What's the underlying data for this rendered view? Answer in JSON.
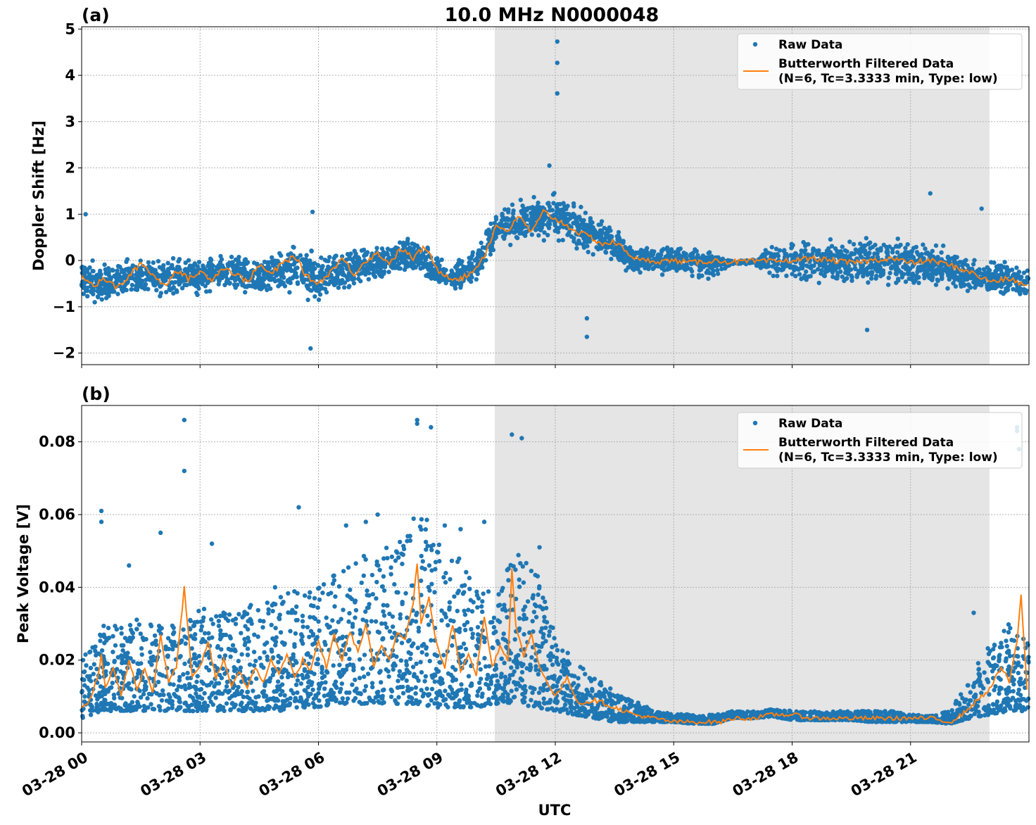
{
  "figure": {
    "title": "10.0 MHz N0000048",
    "xlabel": "UTC",
    "colors": {
      "raw": "#1f77b4",
      "filtered": "#ff7f0e",
      "shade": "#e5e5e5",
      "grid": "#b0b0b0"
    }
  },
  "chart_data": [
    {
      "type": "scatter",
      "panel_label": "(a)",
      "ylabel": "Doppler Shift [Hz]",
      "xlim": [
        "03-28 00:00",
        "03-29 00:00"
      ],
      "ylim": [
        -2.25,
        5.05
      ],
      "y_ticks": [
        {
          "v": -2,
          "label": "−2"
        },
        {
          "v": -1,
          "label": "−1"
        },
        {
          "v": 0,
          "label": "0"
        },
        {
          "v": 1,
          "label": "1"
        },
        {
          "v": 2,
          "label": "2"
        },
        {
          "v": 3,
          "label": "3"
        },
        {
          "v": 4,
          "label": "4"
        },
        {
          "v": 5,
          "label": "5"
        }
      ],
      "x_tick_hours": [
        0,
        3,
        6,
        9,
        12,
        15,
        18,
        21
      ],
      "x_tick_labels": [],
      "grid": true,
      "legend_position": "top-right",
      "shaded_interval": [
        "03-28 10:28",
        "03-28 23:00"
      ],
      "series": [
        {
          "name": "Raw Data",
          "style": "points",
          "x_hours": [
            0.0,
            0.5,
            1.0,
            1.5,
            2.0,
            2.5,
            3.0,
            3.5,
            4.0,
            4.5,
            5.0,
            5.5,
            5.8,
            6.0,
            6.5,
            7.0,
            7.5,
            8.0,
            8.5,
            9.0,
            9.5,
            10.0,
            10.5,
            11.0,
            11.5,
            12.0,
            12.5,
            13.0,
            13.5,
            14.0,
            14.5,
            15.0,
            15.5,
            16.0,
            16.5,
            17.0,
            17.5,
            18.0,
            18.5,
            19.0,
            19.5,
            20.0,
            20.5,
            21.0,
            21.5,
            22.0,
            22.5,
            23.0,
            23.5,
            23.95
          ],
          "center": [
            -0.4,
            -0.5,
            -0.45,
            -0.35,
            -0.4,
            -0.3,
            -0.35,
            -0.25,
            -0.3,
            -0.35,
            -0.25,
            -0.15,
            -0.3,
            -0.45,
            -0.3,
            -0.1,
            -0.05,
            0.05,
            0.1,
            -0.25,
            -0.35,
            -0.1,
            0.7,
            0.8,
            0.9,
            0.95,
            0.75,
            0.55,
            0.35,
            0.0,
            0.0,
            0.0,
            -0.05,
            -0.05,
            -0.05,
            -0.02,
            -0.02,
            0.0,
            0.0,
            0.0,
            -0.05,
            0.0,
            0.0,
            -0.05,
            -0.1,
            -0.2,
            -0.3,
            -0.4,
            -0.4,
            -0.5
          ],
          "spread": [
            0.55,
            0.5,
            0.5,
            0.55,
            0.5,
            0.5,
            0.5,
            0.5,
            0.5,
            0.55,
            0.6,
            0.65,
            0.75,
            0.65,
            0.55,
            0.5,
            0.45,
            0.45,
            0.45,
            0.45,
            0.45,
            0.45,
            0.5,
            0.55,
            0.6,
            0.6,
            0.55,
            0.5,
            0.45,
            0.35,
            0.35,
            0.35,
            0.4,
            0.4,
            0.05,
            0.05,
            0.4,
            0.6,
            0.6,
            0.6,
            0.6,
            0.65,
            0.6,
            0.6,
            0.55,
            0.55,
            0.5,
            0.45,
            0.45,
            0.45
          ],
          "outliers": [
            [
              12.05,
              4.73
            ],
            [
              12.05,
              4.27
            ],
            [
              12.05,
              3.61
            ],
            [
              11.85,
              2.05
            ],
            [
              12.8,
              -1.25
            ],
            [
              12.8,
              -1.65
            ],
            [
              5.8,
              -1.9
            ],
            [
              0.1,
              1.0
            ],
            [
              5.85,
              1.05
            ],
            [
              19.9,
              -1.5
            ],
            [
              21.5,
              1.45
            ],
            [
              22.8,
              1.12
            ]
          ]
        },
        {
          "name": "Butterworth Filtered Data\n(N=6, Tc=3.3333 min, Type: low)",
          "style": "line",
          "x_hours": [
            0.0,
            0.3,
            0.6,
            0.9,
            1.2,
            1.5,
            1.8,
            2.1,
            2.4,
            2.7,
            3.0,
            3.3,
            3.6,
            3.9,
            4.2,
            4.5,
            4.8,
            5.1,
            5.4,
            5.7,
            6.0,
            6.3,
            6.6,
            6.9,
            7.2,
            7.5,
            7.8,
            8.1,
            8.4,
            8.7,
            9.0,
            9.3,
            9.6,
            9.9,
            10.2,
            10.5,
            10.8,
            11.1,
            11.4,
            11.7,
            12.0,
            12.3,
            12.6,
            12.9,
            13.2,
            13.5,
            13.8,
            14.1,
            14.4,
            14.7,
            15.0,
            15.5,
            16.0,
            16.5,
            17.0,
            17.5,
            18.0,
            18.5,
            19.0,
            19.5,
            20.0,
            20.5,
            21.0,
            21.5,
            22.0,
            22.5,
            23.0,
            23.5,
            23.95
          ],
          "y": [
            -0.3,
            -0.55,
            -0.4,
            -0.6,
            -0.35,
            -0.05,
            -0.3,
            -0.55,
            -0.2,
            -0.4,
            -0.25,
            -0.4,
            -0.15,
            -0.3,
            -0.45,
            -0.1,
            -0.3,
            -0.05,
            0.1,
            -0.35,
            -0.5,
            -0.25,
            0.05,
            -0.3,
            0.0,
            0.15,
            -0.05,
            0.25,
            0.05,
            0.3,
            -0.2,
            -0.35,
            -0.4,
            -0.25,
            0.1,
            0.75,
            0.65,
            0.95,
            0.6,
            1.05,
            0.9,
            0.75,
            0.6,
            0.5,
            0.35,
            0.4,
            0.2,
            0.0,
            0.0,
            -0.02,
            0.0,
            -0.05,
            0.0,
            -0.03,
            -0.02,
            -0.02,
            0.0,
            0.05,
            0.0,
            -0.05,
            0.0,
            0.05,
            -0.05,
            0.0,
            -0.1,
            -0.25,
            -0.45,
            -0.4,
            -0.55
          ]
        }
      ]
    },
    {
      "type": "scatter",
      "panel_label": "(b)",
      "ylabel": "Peak Voltage [V]",
      "xlim": [
        "03-28 00:00",
        "03-29 00:00"
      ],
      "ylim": [
        -0.0025,
        0.09
      ],
      "y_ticks": [
        {
          "v": 0.0,
          "label": "0.00"
        },
        {
          "v": 0.02,
          "label": "0.02"
        },
        {
          "v": 0.04,
          "label": "0.04"
        },
        {
          "v": 0.06,
          "label": "0.06"
        },
        {
          "v": 0.08,
          "label": "0.08"
        }
      ],
      "x_tick_hours": [
        0,
        3,
        6,
        9,
        12,
        15,
        18,
        21
      ],
      "x_tick_labels": [
        "03-28 00",
        "03-28 03",
        "03-28 06",
        "03-28 09",
        "03-28 12",
        "03-28 15",
        "03-28 18",
        "03-28 21"
      ],
      "grid": true,
      "legend_position": "top-right",
      "shaded_interval": [
        "03-28 10:28",
        "03-28 23:00"
      ],
      "series": [
        {
          "name": "Raw Data",
          "style": "points",
          "x_hours": [
            0.0,
            0.5,
            1.0,
            1.5,
            2.0,
            2.5,
            3.0,
            3.5,
            4.0,
            4.5,
            5.0,
            5.5,
            6.0,
            6.5,
            7.0,
            7.5,
            8.0,
            8.5,
            9.0,
            9.5,
            10.0,
            10.5,
            11.0,
            11.5,
            12.0,
            12.5,
            13.0,
            13.5,
            14.0,
            14.5,
            15.0,
            15.5,
            16.0,
            16.5,
            17.0,
            17.5,
            18.0,
            18.5,
            19.0,
            19.5,
            20.0,
            20.5,
            21.0,
            21.5,
            22.0,
            22.5,
            23.0,
            23.5,
            23.95
          ],
          "low": [
            0.004,
            0.006,
            0.006,
            0.006,
            0.006,
            0.006,
            0.006,
            0.006,
            0.006,
            0.006,
            0.006,
            0.007,
            0.007,
            0.008,
            0.008,
            0.008,
            0.008,
            0.008,
            0.007,
            0.007,
            0.007,
            0.008,
            0.008,
            0.007,
            0.006,
            0.005,
            0.004,
            0.003,
            0.003,
            0.003,
            0.003,
            0.0025,
            0.0025,
            0.004,
            0.004,
            0.0045,
            0.0035,
            0.0035,
            0.0035,
            0.0035,
            0.003,
            0.003,
            0.003,
            0.003,
            0.0025,
            0.004,
            0.005,
            0.006,
            0.006
          ],
          "high": [
            0.02,
            0.03,
            0.03,
            0.032,
            0.03,
            0.03,
            0.035,
            0.034,
            0.034,
            0.036,
            0.038,
            0.04,
            0.04,
            0.045,
            0.048,
            0.05,
            0.052,
            0.062,
            0.055,
            0.05,
            0.04,
            0.04,
            0.05,
            0.045,
            0.027,
            0.02,
            0.015,
            0.012,
            0.009,
            0.006,
            0.0055,
            0.005,
            0.005,
            0.006,
            0.006,
            0.0065,
            0.006,
            0.006,
            0.006,
            0.006,
            0.006,
            0.006,
            0.005,
            0.005,
            0.006,
            0.015,
            0.025,
            0.03,
            0.025
          ],
          "outliers": [
            [
              2.6,
              0.086
            ],
            [
              2.6,
              0.072
            ],
            [
              0.5,
              0.061
            ],
            [
              0.5,
              0.058
            ],
            [
              2.0,
              0.055
            ],
            [
              3.3,
              0.052
            ],
            [
              7.5,
              0.06
            ],
            [
              8.5,
              0.086
            ],
            [
              8.5,
              0.085
            ],
            [
              8.85,
              0.084
            ],
            [
              10.9,
              0.082
            ],
            [
              11.15,
              0.081
            ],
            [
              11.6,
              0.051
            ],
            [
              23.7,
              0.084
            ],
            [
              23.7,
              0.083
            ],
            [
              23.75,
              0.078
            ],
            [
              5.5,
              0.062
            ],
            [
              6.7,
              0.057
            ],
            [
              7.2,
              0.058
            ],
            [
              9.6,
              0.056
            ],
            [
              9.2,
              0.057
            ],
            [
              10.2,
              0.058
            ],
            [
              1.2,
              0.046
            ],
            [
              4.9,
              0.04
            ],
            [
              22.6,
              0.033
            ]
          ]
        },
        {
          "name": "Butterworth Filtered Data\n(N=6, Tc=3.3333 min, Type: low)",
          "style": "line",
          "x_hours": [
            0.0,
            0.2,
            0.4,
            0.5,
            0.6,
            0.8,
            1.0,
            1.2,
            1.4,
            1.6,
            1.8,
            2.0,
            2.2,
            2.4,
            2.6,
            2.8,
            3.0,
            3.2,
            3.4,
            3.6,
            3.8,
            4.0,
            4.2,
            4.4,
            4.6,
            4.8,
            5.0,
            5.2,
            5.4,
            5.6,
            5.8,
            6.0,
            6.2,
            6.4,
            6.6,
            6.8,
            7.0,
            7.2,
            7.4,
            7.6,
            7.8,
            8.0,
            8.2,
            8.4,
            8.5,
            8.6,
            8.8,
            9.0,
            9.2,
            9.4,
            9.6,
            9.8,
            10.0,
            10.2,
            10.4,
            10.6,
            10.8,
            10.9,
            11.0,
            11.2,
            11.4,
            11.6,
            11.8,
            12.0,
            12.3,
            12.6,
            13.0,
            13.5,
            14.0,
            14.5,
            15.0,
            15.5,
            16.0,
            16.2,
            16.5,
            17.0,
            17.5,
            18.0,
            18.5,
            19.0,
            19.5,
            20.0,
            20.5,
            21.0,
            21.5,
            22.0,
            22.3,
            22.6,
            23.0,
            23.3,
            23.5,
            23.7,
            23.8,
            23.95
          ],
          "y": [
            0.007,
            0.009,
            0.015,
            0.021,
            0.012,
            0.018,
            0.01,
            0.02,
            0.012,
            0.018,
            0.011,
            0.027,
            0.014,
            0.018,
            0.04,
            0.015,
            0.018,
            0.025,
            0.015,
            0.02,
            0.013,
            0.017,
            0.012,
            0.018,
            0.014,
            0.02,
            0.016,
            0.022,
            0.015,
            0.02,
            0.017,
            0.025,
            0.018,
            0.027,
            0.02,
            0.028,
            0.022,
            0.03,
            0.018,
            0.024,
            0.02,
            0.028,
            0.026,
            0.036,
            0.047,
            0.03,
            0.037,
            0.024,
            0.018,
            0.03,
            0.017,
            0.022,
            0.016,
            0.032,
            0.018,
            0.024,
            0.02,
            0.045,
            0.03,
            0.021,
            0.027,
            0.018,
            0.014,
            0.01,
            0.015,
            0.008,
            0.009,
            0.007,
            0.005,
            0.004,
            0.003,
            0.003,
            0.003,
            0.003,
            0.004,
            0.004,
            0.005,
            0.005,
            0.004,
            0.004,
            0.004,
            0.004,
            0.004,
            0.004,
            0.004,
            0.003,
            0.005,
            0.008,
            0.012,
            0.018,
            0.014,
            0.025,
            0.038,
            0.012
          ]
        }
      ]
    }
  ]
}
